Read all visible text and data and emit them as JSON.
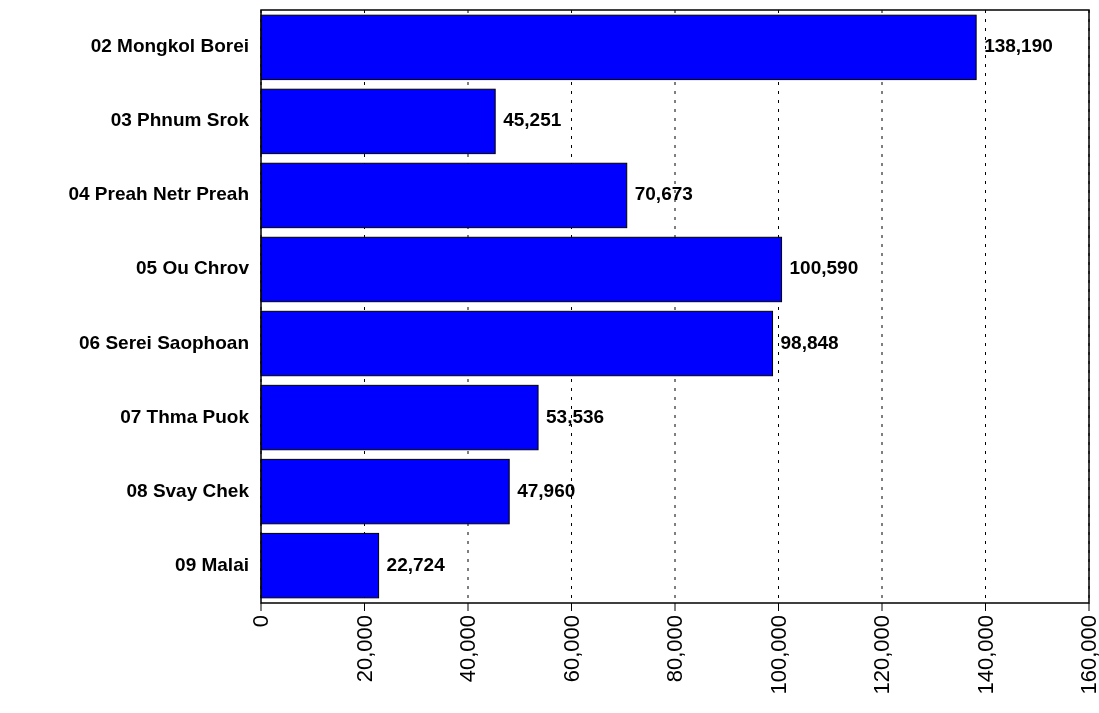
{
  "chart_data": {
    "type": "bar",
    "orientation": "horizontal",
    "categories": [
      "02 Mongkol Borei",
      "03 Phnum Srok",
      "04 Preah Netr Preah",
      "05 Ou Chrov",
      "06 Serei Saophoan",
      "07 Thma Puok",
      "08 Svay Chek",
      "09 Malai"
    ],
    "values": [
      138190,
      45251,
      70673,
      100590,
      98848,
      53536,
      47960,
      22724
    ],
    "color": "#0000ff",
    "xlim": [
      0,
      160000
    ],
    "xticks": [
      {
        "value": 0,
        "label": "0"
      },
      {
        "value": 20000,
        "label": "20,000"
      },
      {
        "value": 40000,
        "label": "40,000"
      },
      {
        "value": 60000,
        "label": "60,000"
      },
      {
        "value": 80000,
        "label": "80,000"
      },
      {
        "value": 100000,
        "label": "100,000"
      },
      {
        "value": 120000,
        "label": "120,000"
      },
      {
        "value": 140000,
        "label": "140,000"
      },
      {
        "value": 160000,
        "label": "160,000"
      }
    ],
    "value_labels": [
      "138,190",
      "45,251",
      "70,673",
      "100,590",
      "98,848",
      "53,536",
      "47,960",
      "22,724"
    ],
    "grid": "x"
  }
}
